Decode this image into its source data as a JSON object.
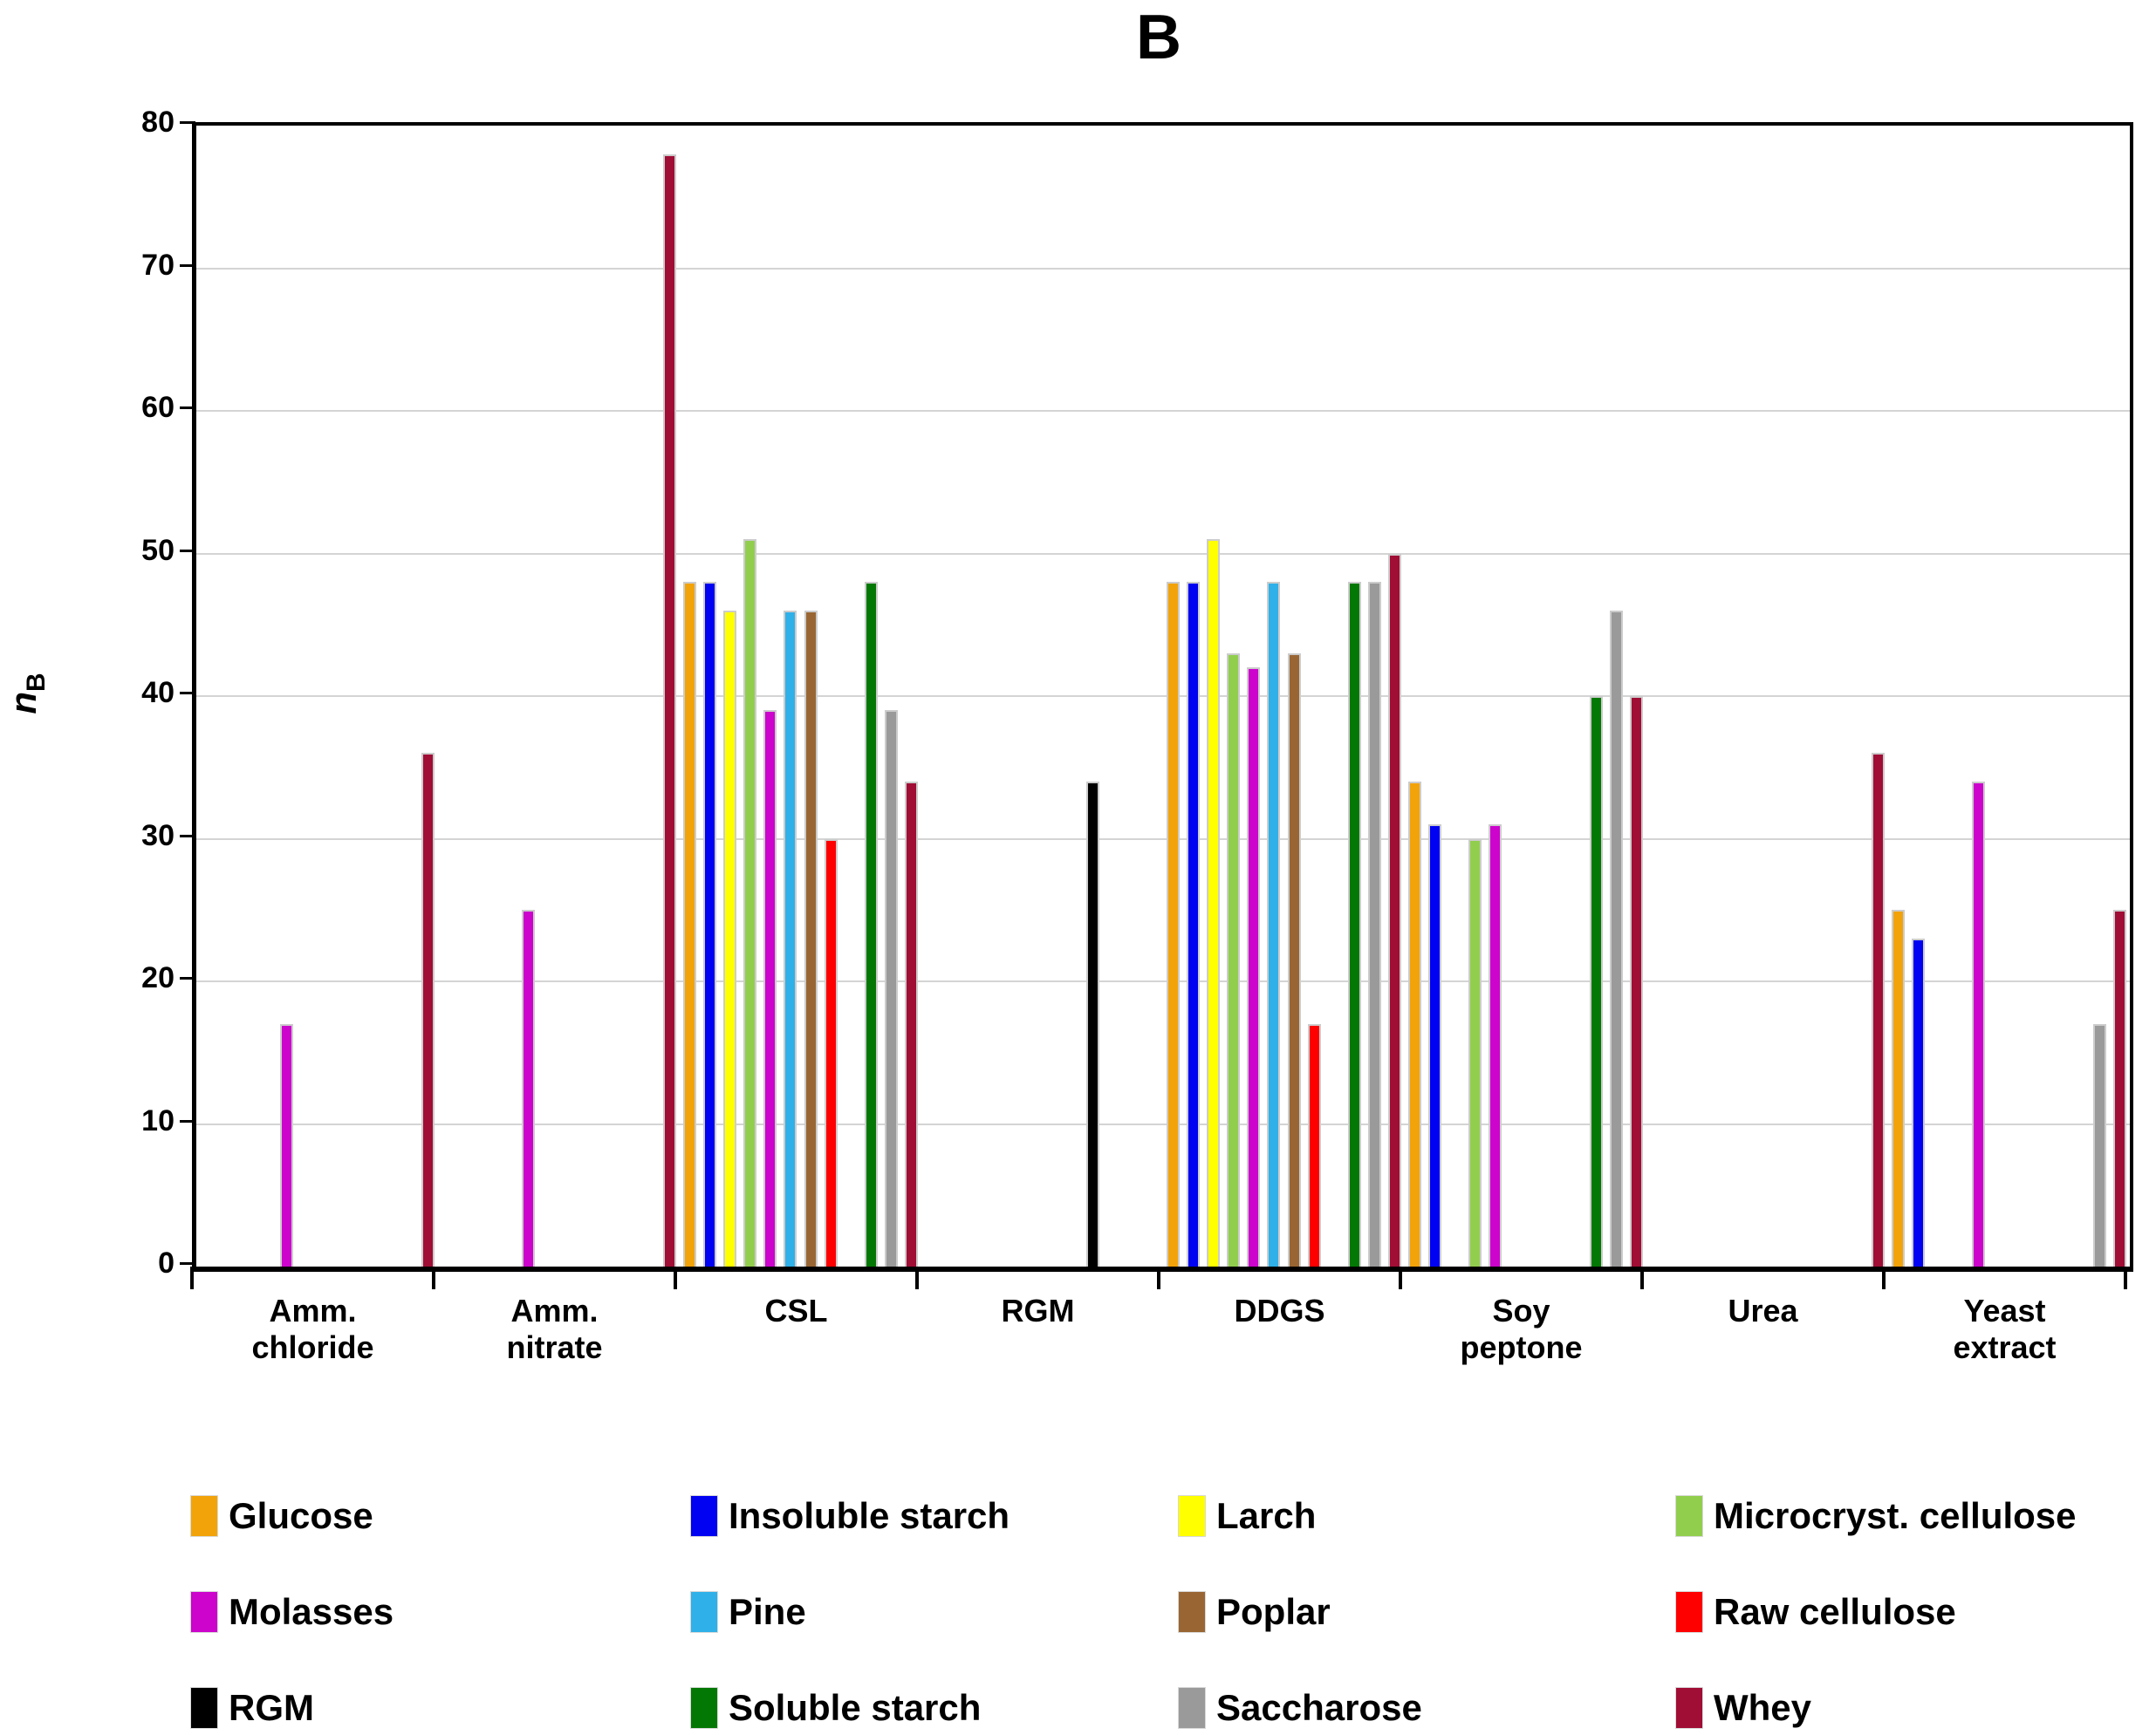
{
  "title": "B",
  "y_axis": {
    "label_main": "n",
    "label_sub": "B",
    "tick_labels": [
      "0",
      "10",
      "20",
      "30",
      "40",
      "50",
      "60",
      "70",
      "80"
    ]
  },
  "chart_data": {
    "type": "bar",
    "title": "B",
    "xlabel": "",
    "ylabel": "n_B",
    "ylim": [
      0,
      80
    ],
    "ytick_step": 10,
    "grid": "horizontal",
    "legend_position": "bottom",
    "legend_rows": 3,
    "legend_cols": 4,
    "categories": [
      "Amm. chloride",
      "Amm. nitrate",
      "CSL",
      "RGM",
      "DDGS",
      "Soy peptone",
      "Urea",
      "Yeast extract"
    ],
    "category_label_lines": [
      [
        "Amm.",
        "chloride"
      ],
      [
        "Amm.",
        "nitrate"
      ],
      [
        "CSL"
      ],
      [
        "RGM"
      ],
      [
        "DDGS"
      ],
      [
        "Soy",
        "peptone"
      ],
      [
        "Urea"
      ],
      [
        "Yeast",
        "extract"
      ]
    ],
    "series": [
      {
        "name": "Glucose",
        "color": "#F2A30A",
        "values": [
          null,
          null,
          48,
          null,
          48,
          34,
          null,
          25
        ]
      },
      {
        "name": "Insoluble starch",
        "color": "#0202F2",
        "values": [
          null,
          null,
          48,
          null,
          48,
          31,
          null,
          23
        ]
      },
      {
        "name": "Larch",
        "color": "#FFFF00",
        "values": [
          null,
          null,
          46,
          null,
          51,
          null,
          null,
          null
        ]
      },
      {
        "name": "Microcryst. cellulose",
        "color": "#92CE4E",
        "values": [
          null,
          null,
          51,
          null,
          43,
          30,
          null,
          null
        ]
      },
      {
        "name": "Molasses",
        "color": "#CC04CC",
        "values": [
          17,
          25,
          39,
          null,
          42,
          31,
          null,
          34
        ]
      },
      {
        "name": "Pine",
        "color": "#2FB0E8",
        "values": [
          null,
          null,
          46,
          null,
          48,
          null,
          null,
          null
        ]
      },
      {
        "name": "Poplar",
        "color": "#996633",
        "values": [
          null,
          null,
          46,
          null,
          43,
          null,
          null,
          null
        ]
      },
      {
        "name": "Raw cellulose",
        "color": "#FF0000",
        "values": [
          null,
          null,
          30,
          null,
          17,
          null,
          null,
          null
        ]
      },
      {
        "name": "RGM",
        "color": "#000000",
        "values": [
          null,
          null,
          null,
          34,
          null,
          null,
          null,
          null
        ]
      },
      {
        "name": "Soluble starch",
        "color": "#047804",
        "values": [
          null,
          null,
          48,
          null,
          48,
          40,
          null,
          null
        ]
      },
      {
        "name": "Saccharose",
        "color": "#9A9A9A",
        "values": [
          null,
          null,
          39,
          null,
          48,
          46,
          null,
          17
        ]
      },
      {
        "name": "Whey",
        "color": "#A00D35",
        "values": [
          36,
          78,
          34,
          null,
          50,
          40,
          36,
          25
        ]
      }
    ]
  },
  "layout_hints": {
    "gridline_color": "#d4d4d4",
    "axis_color": "#000000",
    "bar_outline_color": "#cccccc"
  }
}
